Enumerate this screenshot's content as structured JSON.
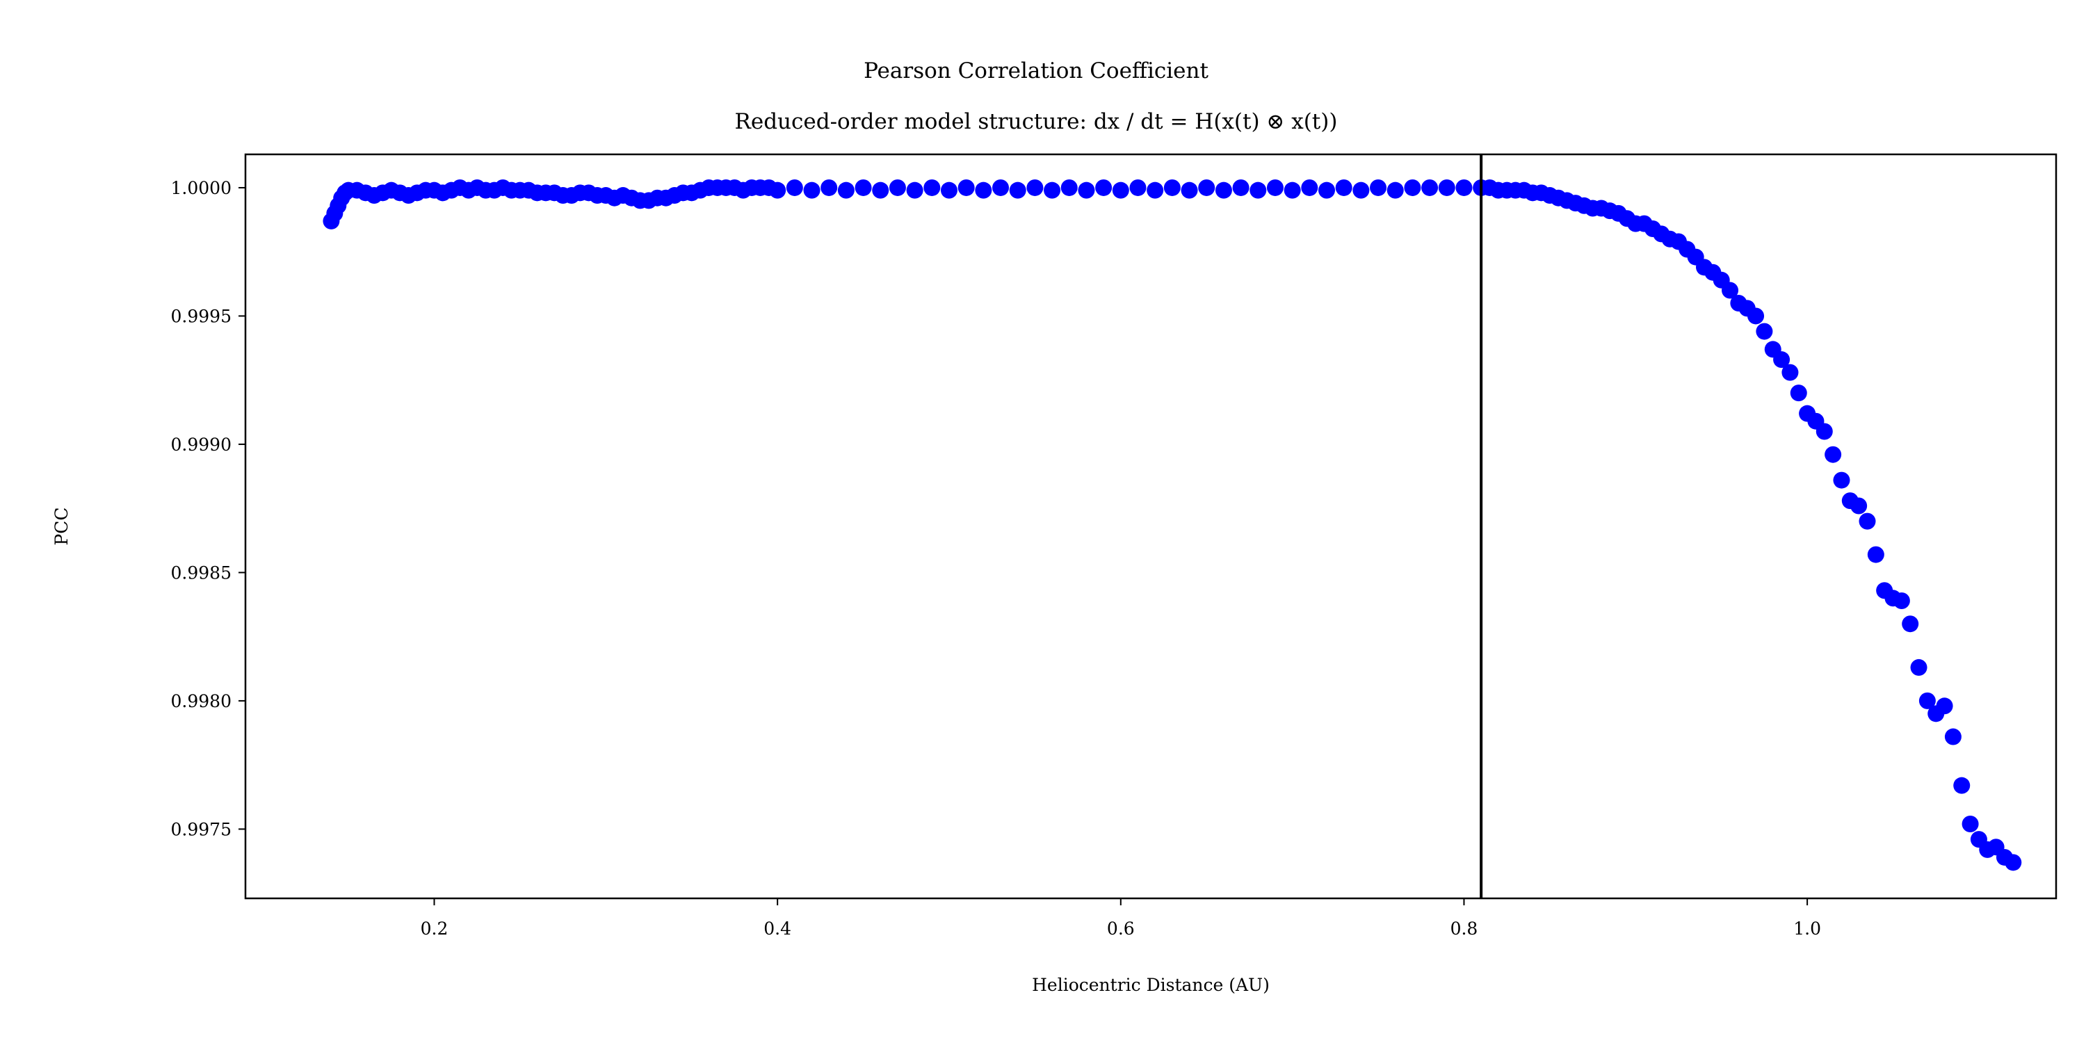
{
  "chart_data": {
    "type": "scatter",
    "title": "Pearson Correlation Coefficient",
    "subtitle": "Reduced-order model structure: dx / dt = H(x(t) ⊗ x(t))",
    "xlabel": "Heliocentric Distance (AU)",
    "ylabel": "PCC",
    "xlim": [
      0.09,
      1.145
    ],
    "ylim": [
      0.99723,
      1.00013
    ],
    "xticks": [
      {
        "value": 0.2,
        "label": "0.2"
      },
      {
        "value": 0.4,
        "label": "0.4"
      },
      {
        "value": 0.6,
        "label": "0.6"
      },
      {
        "value": 0.8,
        "label": "0.8"
      },
      {
        "value": 1.0,
        "label": "1.0"
      }
    ],
    "yticks": [
      {
        "value": 1.0,
        "label": "1.0000"
      },
      {
        "value": 0.9995,
        "label": "0.9995"
      },
      {
        "value": 0.999,
        "label": "0.9990"
      },
      {
        "value": 0.9985,
        "label": "0.9985"
      },
      {
        "value": 0.998,
        "label": "0.9980"
      },
      {
        "value": 0.9975,
        "label": "0.9975"
      }
    ],
    "vline_x": 0.81,
    "grid": false,
    "marker_color": "#0000ff",
    "vline_color": "#000000",
    "series": [
      {
        "points": [
          [
            0.14,
            0.99987
          ],
          [
            0.142,
            0.9999
          ],
          [
            0.144,
            0.99993
          ],
          [
            0.146,
            0.99996
          ],
          [
            0.148,
            0.99998
          ],
          [
            0.15,
            0.99999
          ],
          [
            0.155,
            0.99999
          ],
          [
            0.16,
            0.99998
          ],
          [
            0.165,
            0.99997
          ],
          [
            0.17,
            0.99998
          ],
          [
            0.175,
            0.99999
          ],
          [
            0.18,
            0.99998
          ],
          [
            0.185,
            0.99997
          ],
          [
            0.19,
            0.99998
          ],
          [
            0.195,
            0.99999
          ],
          [
            0.2,
            0.99999
          ],
          [
            0.205,
            0.99998
          ],
          [
            0.21,
            0.99999
          ],
          [
            0.215,
            1.0
          ],
          [
            0.22,
            0.99999
          ],
          [
            0.225,
            1.0
          ],
          [
            0.23,
            0.99999
          ],
          [
            0.235,
            0.99999
          ],
          [
            0.24,
            1.0
          ],
          [
            0.245,
            0.99999
          ],
          [
            0.25,
            0.99999
          ],
          [
            0.255,
            0.99999
          ],
          [
            0.26,
            0.99998
          ],
          [
            0.265,
            0.99998
          ],
          [
            0.27,
            0.99998
          ],
          [
            0.275,
            0.99997
          ],
          [
            0.28,
            0.99997
          ],
          [
            0.285,
            0.99998
          ],
          [
            0.29,
            0.99998
          ],
          [
            0.295,
            0.99997
          ],
          [
            0.3,
            0.99997
          ],
          [
            0.305,
            0.99996
          ],
          [
            0.31,
            0.99997
          ],
          [
            0.315,
            0.99996
          ],
          [
            0.32,
            0.99995
          ],
          [
            0.325,
            0.99995
          ],
          [
            0.33,
            0.99996
          ],
          [
            0.335,
            0.99996
          ],
          [
            0.34,
            0.99997
          ],
          [
            0.345,
            0.99998
          ],
          [
            0.35,
            0.99998
          ],
          [
            0.355,
            0.99999
          ],
          [
            0.36,
            1.0
          ],
          [
            0.365,
            1.0
          ],
          [
            0.37,
            1.0
          ],
          [
            0.375,
            1.0
          ],
          [
            0.38,
            0.99999
          ],
          [
            0.385,
            1.0
          ],
          [
            0.39,
            1.0
          ],
          [
            0.395,
            1.0
          ],
          [
            0.4,
            0.99999
          ],
          [
            0.41,
            1.0
          ],
          [
            0.42,
            0.99999
          ],
          [
            0.43,
            1.0
          ],
          [
            0.44,
            0.99999
          ],
          [
            0.45,
            1.0
          ],
          [
            0.46,
            0.99999
          ],
          [
            0.47,
            1.0
          ],
          [
            0.48,
            0.99999
          ],
          [
            0.49,
            1.0
          ],
          [
            0.5,
            0.99999
          ],
          [
            0.51,
            1.0
          ],
          [
            0.52,
            0.99999
          ],
          [
            0.53,
            1.0
          ],
          [
            0.54,
            0.99999
          ],
          [
            0.55,
            1.0
          ],
          [
            0.56,
            0.99999
          ],
          [
            0.57,
            1.0
          ],
          [
            0.58,
            0.99999
          ],
          [
            0.59,
            1.0
          ],
          [
            0.6,
            0.99999
          ],
          [
            0.61,
            1.0
          ],
          [
            0.62,
            0.99999
          ],
          [
            0.63,
            1.0
          ],
          [
            0.64,
            0.99999
          ],
          [
            0.65,
            1.0
          ],
          [
            0.66,
            0.99999
          ],
          [
            0.67,
            1.0
          ],
          [
            0.68,
            0.99999
          ],
          [
            0.69,
            1.0
          ],
          [
            0.7,
            0.99999
          ],
          [
            0.71,
            1.0
          ],
          [
            0.72,
            0.99999
          ],
          [
            0.73,
            1.0
          ],
          [
            0.74,
            0.99999
          ],
          [
            0.75,
            1.0
          ],
          [
            0.76,
            0.99999
          ],
          [
            0.77,
            1.0
          ],
          [
            0.78,
            1.0
          ],
          [
            0.79,
            1.0
          ],
          [
            0.8,
            1.0
          ],
          [
            0.81,
            1.0
          ],
          [
            0.815,
            1.0
          ],
          [
            0.82,
            0.99999
          ],
          [
            0.825,
            0.99999
          ],
          [
            0.83,
            0.99999
          ],
          [
            0.835,
            0.99999
          ],
          [
            0.84,
            0.99998
          ],
          [
            0.845,
            0.99998
          ],
          [
            0.85,
            0.99997
          ],
          [
            0.855,
            0.99996
          ],
          [
            0.86,
            0.99995
          ],
          [
            0.865,
            0.99994
          ],
          [
            0.87,
            0.99993
          ],
          [
            0.875,
            0.99992
          ],
          [
            0.88,
            0.99992
          ],
          [
            0.885,
            0.99991
          ],
          [
            0.89,
            0.9999
          ],
          [
            0.895,
            0.99988
          ],
          [
            0.9,
            0.99986
          ],
          [
            0.905,
            0.99986
          ],
          [
            0.91,
            0.99984
          ],
          [
            0.915,
            0.99982
          ],
          [
            0.92,
            0.9998
          ],
          [
            0.925,
            0.99979
          ],
          [
            0.93,
            0.99976
          ],
          [
            0.935,
            0.99973
          ],
          [
            0.94,
            0.99969
          ],
          [
            0.945,
            0.99967
          ],
          [
            0.95,
            0.99964
          ],
          [
            0.955,
            0.9996
          ],
          [
            0.96,
            0.99955
          ],
          [
            0.965,
            0.99953
          ],
          [
            0.97,
            0.9995
          ],
          [
            0.975,
            0.99944
          ],
          [
            0.98,
            0.99937
          ],
          [
            0.985,
            0.99933
          ],
          [
            0.99,
            0.99928
          ],
          [
            0.995,
            0.9992
          ],
          [
            1.0,
            0.99912
          ],
          [
            1.005,
            0.99909
          ],
          [
            1.01,
            0.99905
          ],
          [
            1.015,
            0.99896
          ],
          [
            1.02,
            0.99886
          ],
          [
            1.025,
            0.99878
          ],
          [
            1.03,
            0.99876
          ],
          [
            1.035,
            0.9987
          ],
          [
            1.04,
            0.99857
          ],
          [
            1.045,
            0.99843
          ],
          [
            1.05,
            0.9984
          ],
          [
            1.055,
            0.99839
          ],
          [
            1.06,
            0.9983
          ],
          [
            1.065,
            0.99813
          ],
          [
            1.07,
            0.998
          ],
          [
            1.075,
            0.99795
          ],
          [
            1.08,
            0.99798
          ],
          [
            1.085,
            0.99786
          ],
          [
            1.09,
            0.99767
          ],
          [
            1.095,
            0.99752
          ],
          [
            1.1,
            0.99746
          ],
          [
            1.105,
            0.99742
          ],
          [
            1.11,
            0.99743
          ],
          [
            1.115,
            0.99739
          ],
          [
            1.12,
            0.99737
          ]
        ]
      }
    ]
  }
}
